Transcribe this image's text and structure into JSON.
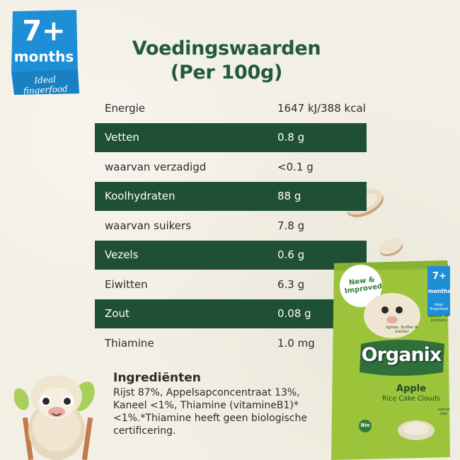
{
  "badge": {
    "age": "7+",
    "unit": "months",
    "tagline": "Ideal fingerfood",
    "color": "#1e8ed6"
  },
  "title": {
    "line1": "Voedingswaarden",
    "line2": "(Per 100g)"
  },
  "nutrition": [
    {
      "name": "Energie",
      "value": "1647 kJ/388 kcal"
    },
    {
      "name": "Vetten",
      "value": "0.8 g"
    },
    {
      "name": "waarvan verzadigd",
      "value": "<0.1 g"
    },
    {
      "name": "Koolhydraten",
      "value": "88 g"
    },
    {
      "name": "waarvan suikers",
      "value": "7.8 g"
    },
    {
      "name": "Vezels",
      "value": "0.6 g"
    },
    {
      "name": "Eiwitten",
      "value": "6.3 g"
    },
    {
      "name": "Zout",
      "value": "0.08 g"
    },
    {
      "name": "Thiamine",
      "value": "1.0 mg"
    }
  ],
  "ingredients": {
    "heading": "Ingrediënten",
    "text": "Rijst 87%, Appelsapconcentraat 13%, Kaneel <1%, Thiamine (vitamineB1)* <1%.*Thiamine heeft geen biologische certificering."
  },
  "pack": {
    "new_label": "New & Improved",
    "age": "7+",
    "unit": "months",
    "tagline": "Ideal fingerfood",
    "portions": "approx. 10 portions",
    "texture": "lighter, fluffier & meltier",
    "brand": "Organix",
    "flavour": "Apple",
    "product": "Rice Cake Clouds",
    "actual_size": "actual size",
    "bio": "Bio"
  },
  "colors": {
    "background": "#f2efe4",
    "table_dark": "#1f4f35",
    "title": "#235a3a",
    "pack_green": "#9bc43a"
  }
}
